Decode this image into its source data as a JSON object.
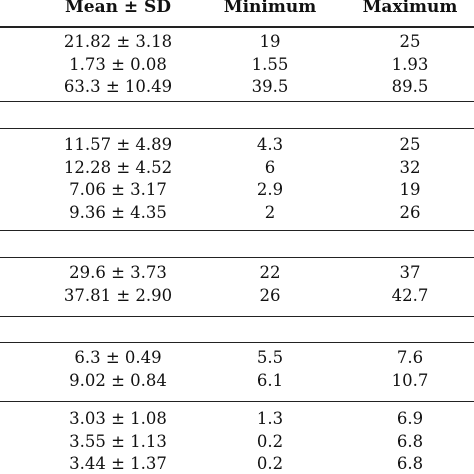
{
  "table": {
    "headers": [
      "Mean ± SD",
      "Minimum",
      "Maximum"
    ],
    "groups": [
      {
        "rows": [
          [
            "21.82 ± 3.18",
            "19",
            "25"
          ],
          [
            "1.73 ± 0.08",
            "1.55",
            "1.93"
          ],
          [
            "63.3 ± 10.49",
            "39.5",
            "89.5"
          ]
        ]
      },
      {
        "rows": [
          [
            "11.57 ± 4.89",
            "4.3",
            "25"
          ],
          [
            "12.28 ± 4.52",
            "6",
            "32"
          ],
          [
            "7.06 ± 3.17",
            "2.9",
            "19"
          ],
          [
            "9.36 ± 4.35",
            "2",
            "26"
          ]
        ]
      },
      {
        "rows": [
          [
            "29.6 ± 3.73",
            "22",
            "37"
          ],
          [
            "37.81 ± 2.90",
            "26",
            "42.7"
          ]
        ]
      },
      {
        "rows": [
          [
            "6.3 ± 0.49",
            "5.5",
            "7.6"
          ],
          [
            "9.02 ± 0.84",
            "6.1",
            "10.7"
          ]
        ]
      },
      {
        "rows": [
          [
            "3.03 ± 1.08",
            "1.3",
            "6.9"
          ],
          [
            "3.55 ± 1.13",
            "0.2",
            "6.8"
          ],
          [
            "3.44 ± 1.37",
            "0.2",
            "6.8"
          ]
        ]
      }
    ]
  }
}
